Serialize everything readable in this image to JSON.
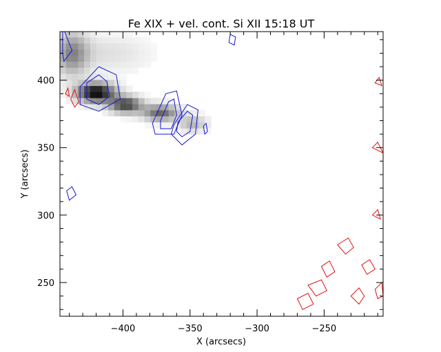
{
  "chart_data": {
    "type": "heatmap",
    "title": "Fe XIX + vel. cont. Si XII 15:18 UT",
    "xlabel": "X (arcsecs)",
    "ylabel": "Y (arcsecs)",
    "xlim": [
      -447,
      -206
    ],
    "ylim": [
      225,
      436
    ],
    "xticks": [
      -400,
      -350,
      -300,
      -250
    ],
    "xtick_labels": [
      "−400",
      "−350",
      "−300",
      "−250"
    ],
    "yticks": [
      250,
      300,
      350,
      400
    ],
    "ytick_labels": [
      "250",
      "300",
      "350",
      "400"
    ],
    "grid": false,
    "colors": {
      "image": "#000000",
      "contour_blue": "#1515d6",
      "contour_red": "#e01010"
    },
    "image_blobs": [
      {
        "x": -420,
        "y": 391,
        "sx": 14,
        "sy": 7,
        "intensity": 1.0
      },
      {
        "x": -398,
        "y": 382,
        "sx": 12,
        "sy": 6,
        "intensity": 0.75
      },
      {
        "x": -372,
        "y": 376,
        "sx": 13,
        "sy": 6,
        "intensity": 0.6
      },
      {
        "x": -348,
        "y": 368,
        "sx": 10,
        "sy": 6,
        "intensity": 0.3
      },
      {
        "x": -438,
        "y": 420,
        "sx": 12,
        "sy": 16,
        "intensity": 0.45
      },
      {
        "x": -410,
        "y": 420,
        "sx": 30,
        "sy": 14,
        "intensity": 0.12
      }
    ],
    "contours_blue": [
      [
        [
          -427,
          398
        ],
        [
          -418,
          404
        ],
        [
          -412,
          399
        ],
        [
          -410,
          388
        ],
        [
          -418,
          382
        ],
        [
          -427,
          386
        ]
      ],
      [
        [
          -432,
          395
        ],
        [
          -418,
          410
        ],
        [
          -405,
          404
        ],
        [
          -402,
          386
        ],
        [
          -418,
          377
        ],
        [
          -432,
          382
        ]
      ],
      [
        [
          -372,
          370
        ],
        [
          -366,
          384
        ],
        [
          -362,
          386
        ],
        [
          -360,
          374
        ],
        [
          -364,
          364
        ],
        [
          -372,
          364
        ]
      ],
      [
        [
          -378,
          368
        ],
        [
          -368,
          390
        ],
        [
          -360,
          392
        ],
        [
          -356,
          374
        ],
        [
          -362,
          360
        ],
        [
          -376,
          360
        ]
      ],
      [
        [
          -359,
          369
        ],
        [
          -352,
          377
        ],
        [
          -348,
          374
        ],
        [
          -350,
          362
        ],
        [
          -356,
          358
        ],
        [
          -360,
          362
        ]
      ],
      [
        [
          -362,
          367
        ],
        [
          -352,
          382
        ],
        [
          -344,
          378
        ],
        [
          -346,
          360
        ],
        [
          -356,
          352
        ],
        [
          -364,
          360
        ]
      ],
      [
        [
          -442,
          318
        ],
        [
          -438,
          321
        ],
        [
          -435,
          315
        ],
        [
          -440,
          311
        ]
      ],
      [
        [
          -445,
          440
        ],
        [
          -438,
          422
        ],
        [
          -444,
          414
        ],
        [
          -445,
          420
        ]
      ],
      [
        [
          -340,
          366
        ],
        [
          -338,
          368
        ],
        [
          -337,
          362
        ],
        [
          -339,
          360
        ]
      ],
      [
        [
          -320,
          434
        ],
        [
          -316,
          432
        ],
        [
          -317,
          426
        ],
        [
          -321,
          428
        ]
      ]
    ],
    "contours_red": [
      [
        [
          -439,
          386
        ],
        [
          -436,
          393
        ],
        [
          -433,
          384
        ],
        [
          -436,
          380
        ]
      ],
      [
        [
          -443,
          390
        ],
        [
          -441,
          394
        ],
        [
          -440,
          388
        ]
      ],
      [
        [
          -230,
          240
        ],
        [
          -224,
          246
        ],
        [
          -220,
          240
        ],
        [
          -224,
          234
        ]
      ],
      [
        [
          -262,
          248
        ],
        [
          -252,
          252
        ],
        [
          -248,
          244
        ],
        [
          -256,
          240
        ]
      ],
      [
        [
          -240,
          278
        ],
        [
          -232,
          283
        ],
        [
          -228,
          276
        ],
        [
          -234,
          271
        ]
      ],
      [
        [
          -222,
          263
        ],
        [
          -216,
          267
        ],
        [
          -212,
          260
        ],
        [
          -218,
          256
        ]
      ],
      [
        [
          -252,
          262
        ],
        [
          -246,
          266
        ],
        [
          -242,
          258
        ],
        [
          -248,
          254
        ]
      ],
      [
        [
          -212,
          245
        ],
        [
          -207,
          250
        ],
        [
          -206,
          240
        ],
        [
          -210,
          238
        ]
      ],
      [
        [
          -270,
          238
        ],
        [
          -262,
          242
        ],
        [
          -258,
          234
        ],
        [
          -266,
          230
        ]
      ],
      [
        [
          -212,
          398
        ],
        [
          -209,
          402
        ],
        [
          -207,
          396
        ]
      ],
      [
        [
          -214,
          350
        ],
        [
          -210,
          354
        ],
        [
          -206,
          346
        ]
      ],
      [
        [
          -214,
          300
        ],
        [
          -210,
          304
        ],
        [
          -208,
          297
        ]
      ]
    ]
  }
}
